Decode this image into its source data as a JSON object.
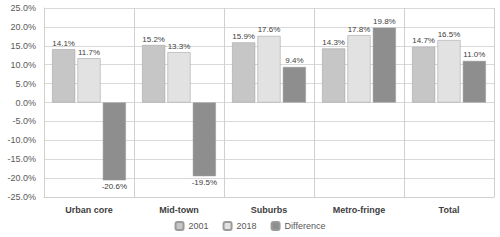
{
  "chart_data": {
    "type": "bar",
    "categories": [
      "Urban core",
      "Mid-town",
      "Suburbs",
      "Metro-fringe",
      "Total"
    ],
    "series": [
      {
        "name": "2001",
        "color": "#c6c6c6",
        "values": [
          14.1,
          15.2,
          15.9,
          14.3,
          14.7
        ],
        "value_labels": [
          "14.1%",
          "15.2%",
          "15.9%",
          "14.3%",
          "14.7%"
        ]
      },
      {
        "name": "2018",
        "color": "#e2e2e2",
        "values": [
          11.7,
          13.3,
          17.6,
          17.8,
          16.5
        ],
        "value_labels": [
          "11.7%",
          "13.3%",
          "17.6%",
          "17.8%",
          "16.5%"
        ]
      },
      {
        "name": "Difference",
        "color": "#8e8e8e",
        "values": [
          -20.6,
          -19.5,
          9.4,
          19.8,
          11.0
        ],
        "value_labels": [
          "-20.6%",
          "-19.5%",
          "9.4%",
          "19.8%",
          "11.0%"
        ]
      }
    ],
    "ylim": [
      -25,
      25
    ],
    "yticks": [
      {
        "value": -25,
        "label": "-25.0%"
      },
      {
        "value": -20,
        "label": "-20.0%"
      },
      {
        "value": -15,
        "label": "-15.0%"
      },
      {
        "value": -10,
        "label": "-10.0%"
      },
      {
        "value": -5,
        "label": "-5.0%"
      },
      {
        "value": 0,
        "label": "0.0%"
      },
      {
        "value": 5,
        "label": "5.0%"
      },
      {
        "value": 10,
        "label": "10.0%"
      },
      {
        "value": 15,
        "label": "15.0%"
      },
      {
        "value": 20,
        "label": "20.0%"
      },
      {
        "value": 25,
        "label": "25.0%"
      }
    ],
    "grid": true,
    "legend": "bottom",
    "data_labels": true
  }
}
